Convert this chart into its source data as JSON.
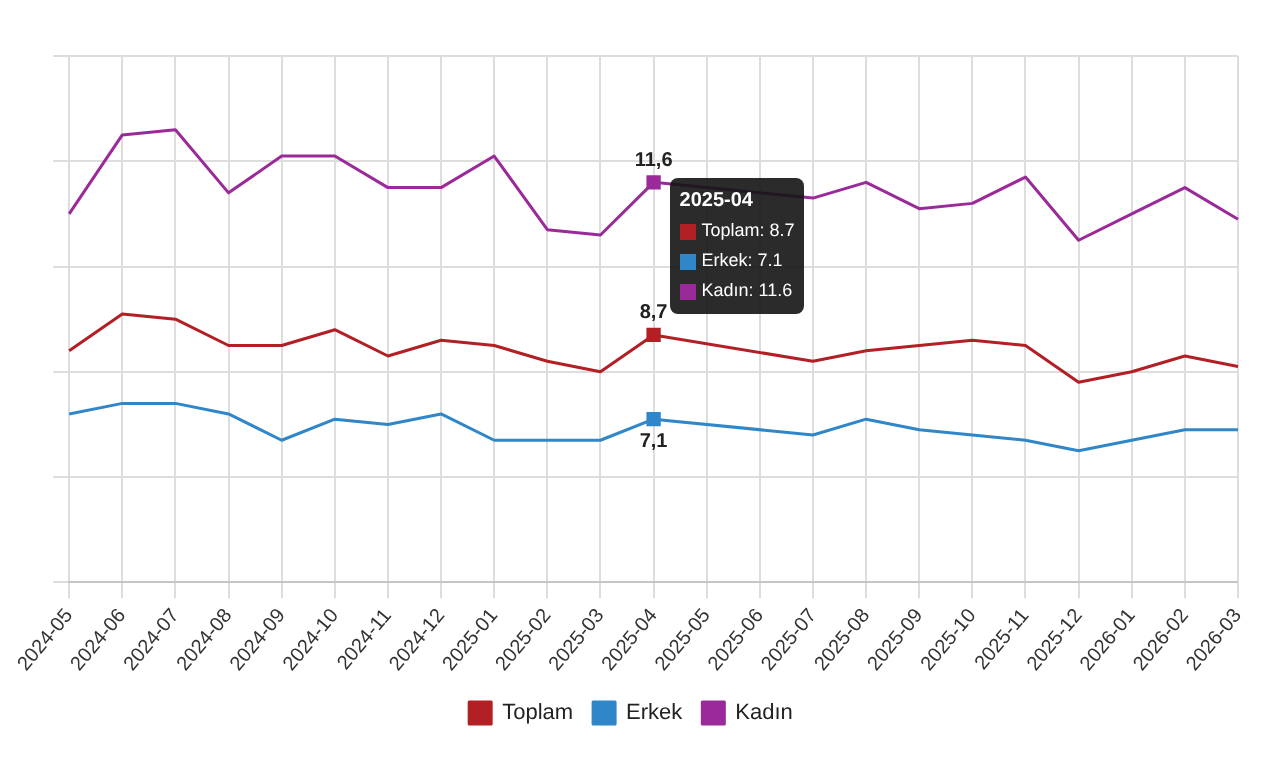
{
  "chart_data": {
    "type": "line",
    "categories": [
      "2024-05",
      "2024-06",
      "2024-07",
      "2024-08",
      "2024-09",
      "2024-10",
      "2024-11",
      "2024-12",
      "2025-01",
      "2025-02",
      "2025-03",
      "2025-04",
      "2025-05",
      "2025-06",
      "2025-07",
      "2025-08",
      "2025-09",
      "2025-10",
      "2025-11",
      "2025-12",
      "2026-01",
      "2026-02",
      "2026-03"
    ],
    "series": [
      {
        "name": "Toplam",
        "color": "#b21f24",
        "values": [
          8.4,
          9.1,
          9.0,
          8.5,
          8.5,
          8.8,
          8.3,
          8.6,
          8.5,
          8.2,
          8.0,
          8.7,
          null,
          null,
          8.2,
          8.4,
          8.5,
          8.6,
          8.5,
          7.8,
          8.0,
          8.3,
          8.1
        ],
        "value_labels": [
          null,
          null,
          null,
          null,
          null,
          null,
          null,
          null,
          null,
          null,
          null,
          "8,7",
          null,
          null,
          null,
          null,
          null,
          null,
          null,
          null,
          null,
          null,
          null
        ]
      },
      {
        "name": "Erkek",
        "color": "#2f86c8",
        "values": [
          7.2,
          7.4,
          7.4,
          7.2,
          6.7,
          7.1,
          7.0,
          7.2,
          6.7,
          6.7,
          6.7,
          7.1,
          null,
          null,
          6.8,
          7.1,
          6.9,
          6.8,
          6.7,
          6.5,
          6.7,
          6.9,
          6.9
        ],
        "value_labels": [
          null,
          null,
          null,
          null,
          null,
          null,
          null,
          null,
          null,
          null,
          null,
          "7,1",
          null,
          null,
          null,
          null,
          null,
          null,
          null,
          null,
          null,
          null,
          null
        ]
      },
      {
        "name": "Kadın",
        "color": "#9a2a9a",
        "values": [
          11.0,
          12.5,
          12.6,
          11.4,
          12.1,
          12.1,
          11.5,
          11.5,
          12.1,
          10.7,
          10.6,
          11.6,
          null,
          null,
          11.3,
          11.6,
          11.1,
          11.2,
          11.7,
          10.5,
          11.0,
          11.5,
          10.9
        ],
        "value_labels": [
          null,
          null,
          null,
          null,
          null,
          null,
          null,
          null,
          null,
          null,
          null,
          "11,6",
          null,
          null,
          null,
          null,
          null,
          null,
          null,
          null,
          null,
          null,
          null
        ]
      }
    ],
    "annotations": [
      "2025-04",
      "Toplam: 8.7",
      "Erkek: 7.1",
      "Kadın: 11.6"
    ],
    "ylim": [
      4,
      14
    ],
    "yticks": [
      {
        "value": 4,
        "label": null
      },
      {
        "value": 6,
        "label": null
      },
      {
        "value": 8,
        "label": null
      },
      {
        "value": 10,
        "label": null
      },
      {
        "value": 12,
        "label": null
      },
      {
        "value": 14,
        "label": null
      }
    ],
    "tick_labels": "x",
    "grid": true,
    "legend": "bottom",
    "line_style": "solid"
  }
}
